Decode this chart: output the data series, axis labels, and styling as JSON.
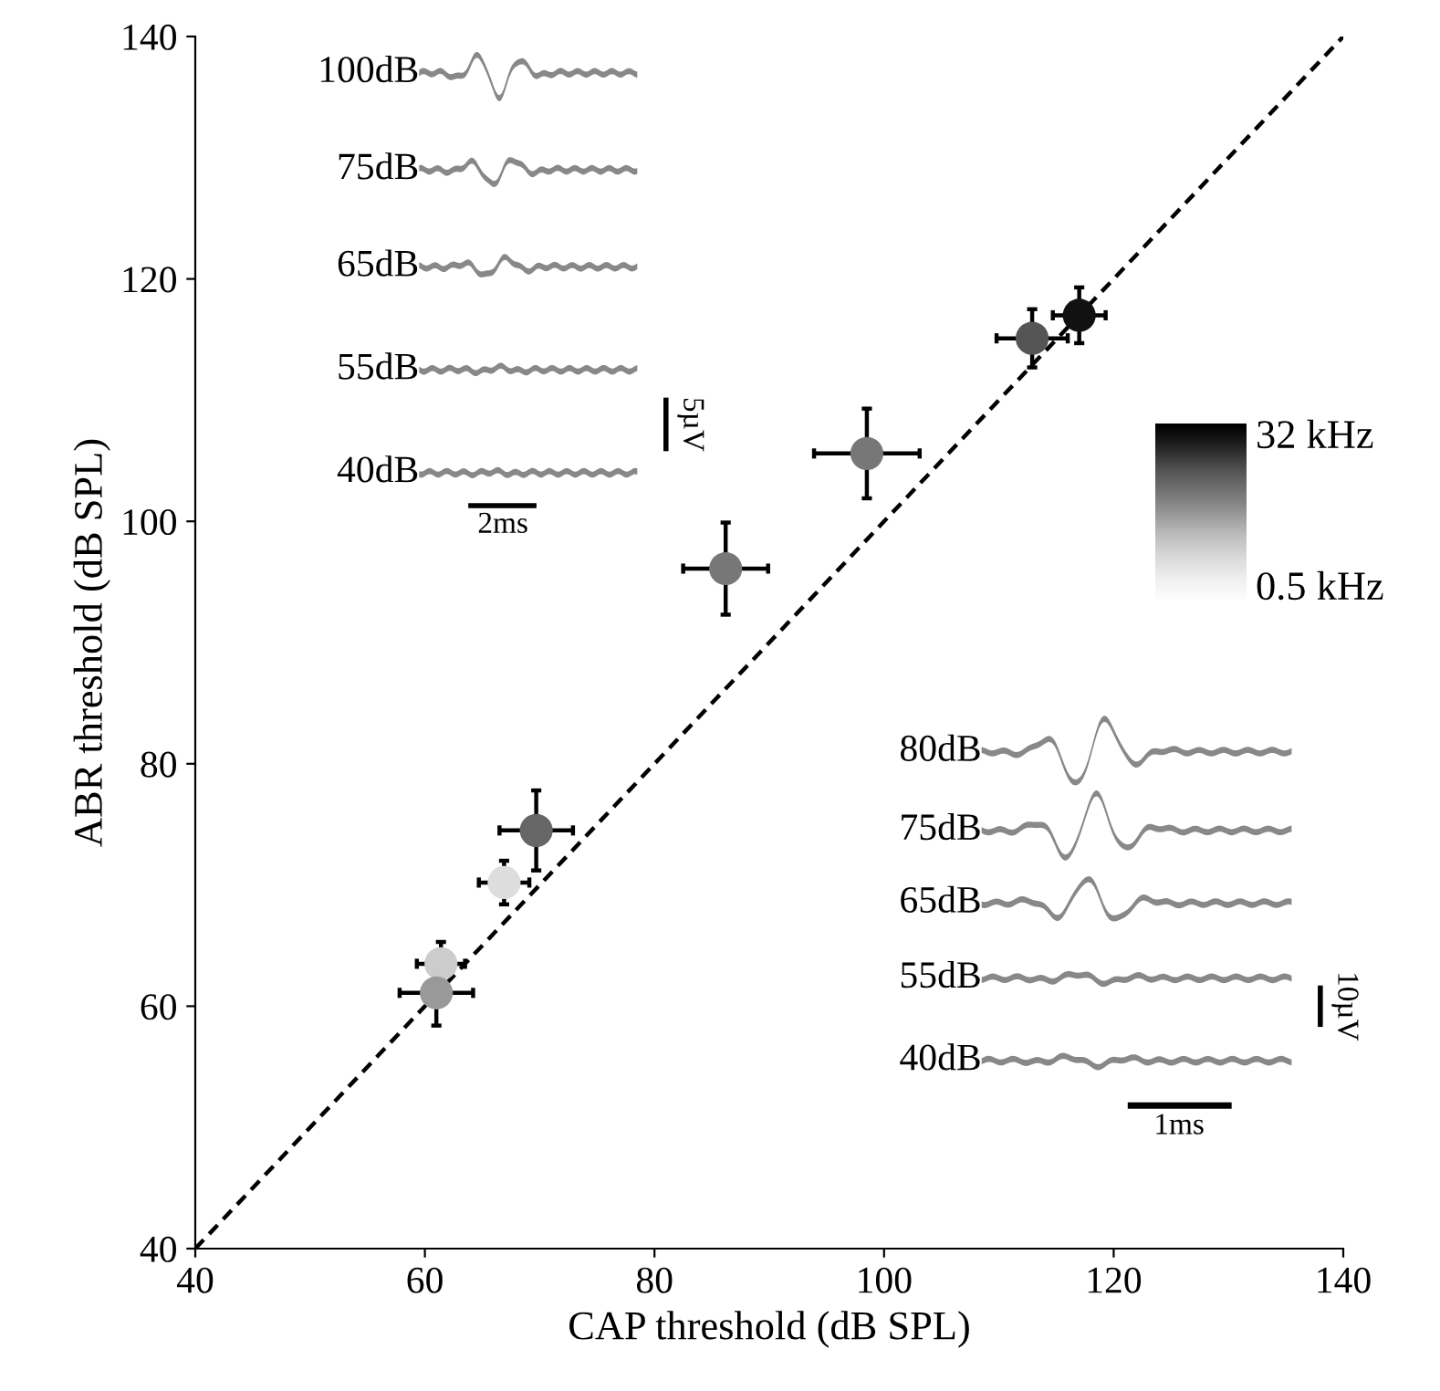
{
  "chart_data": {
    "type": "scatter",
    "xlabel": "CAP threshold (dB SPL)",
    "ylabel": "ABR threshold (dB SPL)",
    "xlim": [
      40,
      140
    ],
    "ylim": [
      40,
      140
    ],
    "xticks": [
      40,
      60,
      80,
      100,
      120,
      140
    ],
    "yticks": [
      40,
      60,
      80,
      100,
      120,
      140
    ],
    "grid": false,
    "marker": "circle",
    "series": [
      {
        "type": "line",
        "color": "#000000",
        "line_style": "dashed",
        "marker": "none",
        "x": [
          40,
          140
        ],
        "values": [
          40,
          140
        ]
      },
      {
        "x": [
          117.0,
          112.9,
          98.5,
          86.2,
          69.7,
          66.9,
          61.4,
          61.0
        ],
        "values": [
          117.0,
          115.1,
          105.6,
          96.1,
          74.5,
          70.2,
          63.5,
          61.1
        ],
        "colors": [
          "#111111",
          "#555555",
          "#777777",
          "#777777",
          "#666666",
          "#dddddd",
          "#cccccc",
          "#999999"
        ],
        "errors": [
          2.3,
          2.4,
          3.7,
          3.8,
          3.3,
          1.8,
          1.8,
          2.7
        ],
        "xerrors": [
          2.3,
          3.1,
          4.6,
          3.7,
          3.2,
          2.2,
          2.1,
          3.2
        ]
      }
    ],
    "annotations": [
      "100dB",
      "75dB",
      "65dB",
      "55dB",
      "40dB",
      "5µV",
      "2ms",
      "80dB",
      "75dB",
      "65dB",
      "55dB",
      "40dB",
      "10µV",
      "1ms",
      "32 kHz",
      "0.5 kHz"
    ]
  }
}
